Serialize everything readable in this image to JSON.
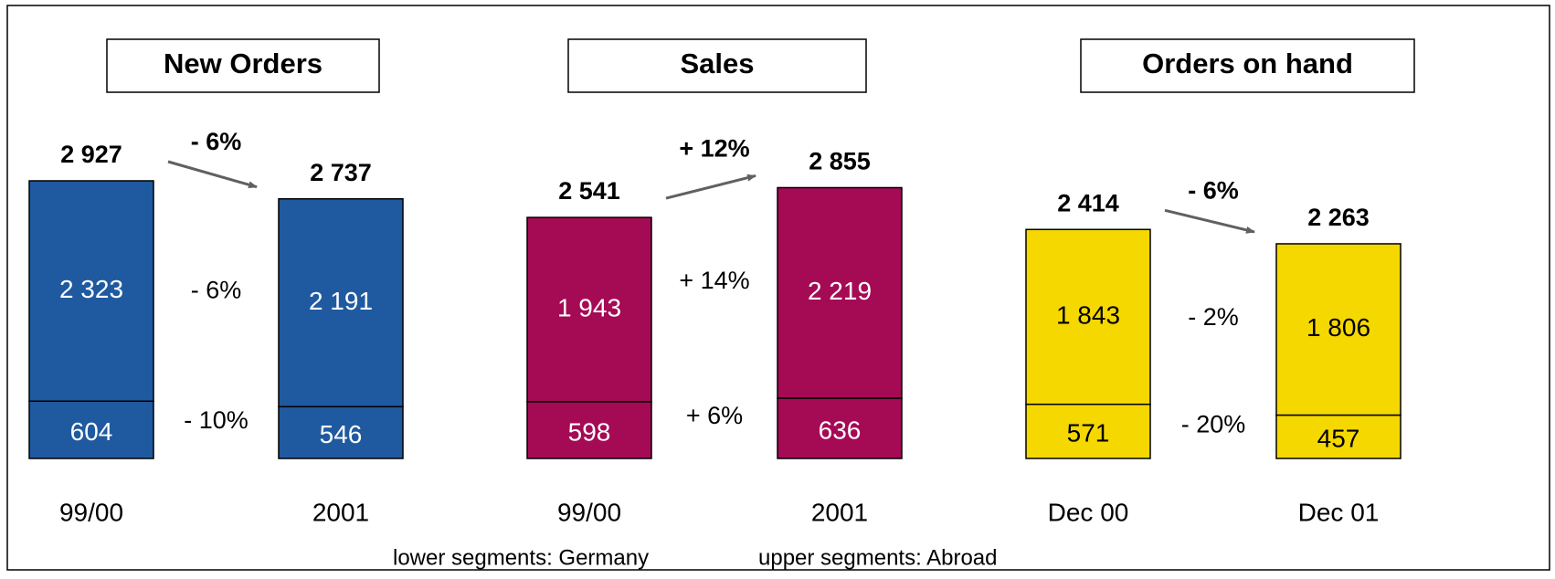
{
  "chart_data": [
    {
      "type": "bar",
      "stacked": true,
      "title": "New Orders",
      "categories": [
        "99/00",
        "2001"
      ],
      "series": [
        {
          "color": "#1f5aa0",
          "text_color": "#ffffff",
          "values": [
            604,
            546
          ],
          "value_labels": [
            "604",
            "546"
          ],
          "change": {
            "value": -10,
            "label": "- 10%"
          }
        },
        {
          "color": "#1f5aa0",
          "text_color": "#ffffff",
          "values": [
            2323,
            2191
          ],
          "value_labels": [
            "2 323",
            "2 191"
          ],
          "change": {
            "value": -6,
            "label": "- 6%"
          }
        }
      ],
      "totals": [
        2927,
        2737
      ],
      "total_labels": [
        "2 927",
        "2 737"
      ],
      "total_change": {
        "value": -6,
        "label": "- 6%"
      }
    },
    {
      "type": "bar",
      "stacked": true,
      "title": "Sales",
      "categories": [
        "99/00",
        "2001"
      ],
      "series": [
        {
          "color": "#a50a55",
          "text_color": "#ffffff",
          "values": [
            598,
            636
          ],
          "value_labels": [
            "598",
            "636"
          ],
          "change": {
            "value": 6,
            "label": "+ 6%"
          }
        },
        {
          "color": "#a50a55",
          "text_color": "#ffffff",
          "values": [
            1943,
            2219
          ],
          "value_labels": [
            "1 943",
            "2 219"
          ],
          "change": {
            "value": 14,
            "label": "+ 14%"
          }
        }
      ],
      "totals": [
        2541,
        2855
      ],
      "total_labels": [
        "2 541",
        "2 855"
      ],
      "total_change": {
        "value": 12,
        "label": "+ 12%"
      }
    },
    {
      "type": "bar",
      "stacked": true,
      "title": "Orders on hand",
      "categories": [
        "Dec 00",
        "Dec 01"
      ],
      "series": [
        {
          "color": "#f5d800",
          "text_color": "#000000",
          "values": [
            571,
            457
          ],
          "value_labels": [
            "571",
            "457"
          ],
          "change": {
            "value": -20,
            "label": "- 20%"
          }
        },
        {
          "color": "#f5d800",
          "text_color": "#000000",
          "values": [
            1843,
            1806
          ],
          "value_labels": [
            "1 843",
            "1 806"
          ],
          "change": {
            "value": -2,
            "label": "- 2%"
          }
        }
      ],
      "totals": [
        2414,
        2263
      ],
      "total_labels": [
        "2 414",
        "2 263"
      ],
      "total_change": {
        "value": -6,
        "label": "- 6%"
      }
    }
  ],
  "notes": [
    "lower segments: Germany",
    "upper segments: Abroad"
  ]
}
